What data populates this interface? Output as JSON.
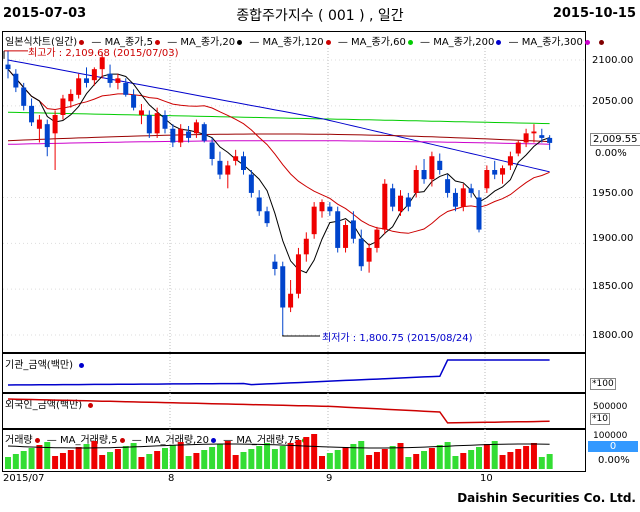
{
  "header": {
    "start_date": "2015-07-03",
    "title": "종합주가지수 ( 001 ) , 일간",
    "end_date": "2015-10-15"
  },
  "price_panel": {
    "legend": [
      {
        "label": "일본식차트(일간)",
        "color": "#c00000"
      },
      {
        "label": "MA_종가,5",
        "color": "#cc0000"
      },
      {
        "label": "MA_종가,20",
        "color": "#000000"
      },
      {
        "label": "MA_종가,120",
        "color": "#cc0000"
      },
      {
        "label": "MA_종가,60",
        "color": "#00cc00"
      },
      {
        "label": "MA_종가,200",
        "color": "#0000cc"
      },
      {
        "label": "MA_종가,300",
        "color": "#cc00cc"
      }
    ],
    "legend_end_marker": "#800000",
    "high_annotation": "최고가 : 2,109.68 (2015/07/03)",
    "low_annotation": "최저가 : 1,800.75 (2015/08/24)",
    "yticks": [
      "2100.00",
      "2050.00",
      "2009.55",
      "1950.00",
      "1900.00",
      "1850.00",
      "1800.00"
    ],
    "current_value": "2,009.55",
    "change_pct": "0.00%"
  },
  "institution_panel": {
    "title": "기관_금액(백만)",
    "color": "#0000cc",
    "scale": "*100"
  },
  "foreign_panel": {
    "title": "외국인_금액(백만)",
    "color": "#cc0000",
    "tick": "500000",
    "scale": "*10"
  },
  "volume_panel": {
    "legend": [
      {
        "label": "거래량",
        "color": "#cc0000"
      },
      {
        "label": "MA_거래량,5",
        "color": "#cc0000"
      },
      {
        "label": "MA_거래량,20",
        "color": "#0000cc"
      },
      {
        "label": "MA_거래량,75",
        "color": "#00cc00"
      }
    ],
    "tick": "100000",
    "current_value": "0",
    "change_pct": "0.00%"
  },
  "x_axis": {
    "labels": [
      "2015/07",
      "8",
      "9",
      "10"
    ]
  },
  "footer": {
    "brand": "Daishin Securities Co. Ltd."
  },
  "chart_data": {
    "type": "candlestick",
    "y_range": [
      1780,
      2120
    ],
    "candles": [
      {
        "o": 2095,
        "h": 2110,
        "l": 2080,
        "c": 2090
      },
      {
        "o": 2085,
        "h": 2090,
        "l": 2065,
        "c": 2070
      },
      {
        "o": 2070,
        "h": 2075,
        "l": 2045,
        "c": 2050
      },
      {
        "o": 2050,
        "h": 2058,
        "l": 2028,
        "c": 2032
      },
      {
        "o": 2025,
        "h": 2040,
        "l": 2010,
        "c": 2035
      },
      {
        "o": 2030,
        "h": 2035,
        "l": 1995,
        "c": 2005
      },
      {
        "o": 2020,
        "h": 2045,
        "l": 1980,
        "c": 2040
      },
      {
        "o": 2040,
        "h": 2062,
        "l": 2035,
        "c": 2058
      },
      {
        "o": 2055,
        "h": 2068,
        "l": 2048,
        "c": 2063
      },
      {
        "o": 2062,
        "h": 2085,
        "l": 2058,
        "c": 2080
      },
      {
        "o": 2080,
        "h": 2092,
        "l": 2070,
        "c": 2075
      },
      {
        "o": 2078,
        "h": 2092,
        "l": 2072,
        "c": 2090
      },
      {
        "o": 2090,
        "h": 2108,
        "l": 2080,
        "c": 2103
      },
      {
        "o": 2085,
        "h": 2095,
        "l": 2070,
        "c": 2075
      },
      {
        "o": 2075,
        "h": 2085,
        "l": 2068,
        "c": 2080
      },
      {
        "o": 2075,
        "h": 2080,
        "l": 2060,
        "c": 2062
      },
      {
        "o": 2062,
        "h": 2068,
        "l": 2045,
        "c": 2048
      },
      {
        "o": 2040,
        "h": 2052,
        "l": 2030,
        "c": 2045
      },
      {
        "o": 2040,
        "h": 2045,
        "l": 2015,
        "c": 2020
      },
      {
        "o": 2020,
        "h": 2048,
        "l": 2015,
        "c": 2042
      },
      {
        "o": 2040,
        "h": 2045,
        "l": 2020,
        "c": 2025
      },
      {
        "o": 2025,
        "h": 2030,
        "l": 2005,
        "c": 2010
      },
      {
        "o": 2010,
        "h": 2030,
        "l": 2005,
        "c": 2025
      },
      {
        "o": 2022,
        "h": 2028,
        "l": 2010,
        "c": 2015
      },
      {
        "o": 2020,
        "h": 2035,
        "l": 2015,
        "c": 2032
      },
      {
        "o": 2030,
        "h": 2032,
        "l": 2010,
        "c": 2012
      },
      {
        "o": 2010,
        "h": 2015,
        "l": 1985,
        "c": 1992
      },
      {
        "o": 1990,
        "h": 2000,
        "l": 1970,
        "c": 1975
      },
      {
        "o": 1975,
        "h": 1990,
        "l": 1960,
        "c": 1985
      },
      {
        "o": 1990,
        "h": 2002,
        "l": 1985,
        "c": 1995
      },
      {
        "o": 1995,
        "h": 2000,
        "l": 1975,
        "c": 1980
      },
      {
        "o": 1975,
        "h": 1980,
        "l": 1950,
        "c": 1955
      },
      {
        "o": 1950,
        "h": 1958,
        "l": 1930,
        "c": 1935
      },
      {
        "o": 1935,
        "h": 1940,
        "l": 1918,
        "c": 1922
      },
      {
        "o": 1880,
        "h": 1888,
        "l": 1865,
        "c": 1872
      },
      {
        "o": 1875,
        "h": 1880,
        "l": 1800,
        "c": 1830
      },
      {
        "o": 1830,
        "h": 1860,
        "l": 1825,
        "c": 1845
      },
      {
        "o": 1845,
        "h": 1895,
        "l": 1840,
        "c": 1888
      },
      {
        "o": 1888,
        "h": 1912,
        "l": 1880,
        "c": 1905
      },
      {
        "o": 1910,
        "h": 1945,
        "l": 1905,
        "c": 1940
      },
      {
        "o": 1935,
        "h": 1948,
        "l": 1928,
        "c": 1945
      },
      {
        "o": 1940,
        "h": 1945,
        "l": 1930,
        "c": 1935
      },
      {
        "o": 1935,
        "h": 1940,
        "l": 1890,
        "c": 1895
      },
      {
        "o": 1895,
        "h": 1925,
        "l": 1890,
        "c": 1920
      },
      {
        "o": 1925,
        "h": 1935,
        "l": 1900,
        "c": 1905
      },
      {
        "o": 1905,
        "h": 1915,
        "l": 1870,
        "c": 1875
      },
      {
        "o": 1880,
        "h": 1900,
        "l": 1868,
        "c": 1895
      },
      {
        "o": 1895,
        "h": 1918,
        "l": 1890,
        "c": 1915
      },
      {
        "o": 1915,
        "h": 1970,
        "l": 1910,
        "c": 1965
      },
      {
        "o": 1960,
        "h": 1965,
        "l": 1935,
        "c": 1940
      },
      {
        "o": 1935,
        "h": 1958,
        "l": 1930,
        "c": 1952
      },
      {
        "o": 1950,
        "h": 1955,
        "l": 1935,
        "c": 1940
      },
      {
        "o": 1955,
        "h": 1985,
        "l": 1950,
        "c": 1980
      },
      {
        "o": 1980,
        "h": 1992,
        "l": 1965,
        "c": 1970
      },
      {
        "o": 1970,
        "h": 2000,
        "l": 1962,
        "c": 1995
      },
      {
        "o": 1990,
        "h": 1998,
        "l": 1975,
        "c": 1980
      },
      {
        "o": 1970,
        "h": 1975,
        "l": 1950,
        "c": 1955
      },
      {
        "o": 1955,
        "h": 1960,
        "l": 1935,
        "c": 1940
      },
      {
        "o": 1940,
        "h": 1965,
        "l": 1935,
        "c": 1960
      },
      {
        "o": 1960,
        "h": 1965,
        "l": 1950,
        "c": 1955
      },
      {
        "o": 1950,
        "h": 1958,
        "l": 1912,
        "c": 1915
      },
      {
        "o": 1960,
        "h": 1985,
        "l": 1955,
        "c": 1980
      },
      {
        "o": 1980,
        "h": 1990,
        "l": 1970,
        "c": 1975
      },
      {
        "o": 1975,
        "h": 1985,
        "l": 1965,
        "c": 1982
      },
      {
        "o": 1985,
        "h": 2000,
        "l": 1980,
        "c": 1995
      },
      {
        "o": 1998,
        "h": 2012,
        "l": 1995,
        "c": 2010
      },
      {
        "o": 2010,
        "h": 2025,
        "l": 2005,
        "c": 2020
      },
      {
        "o": 2020,
        "h": 2030,
        "l": 2010,
        "c": 2022
      },
      {
        "o": 2018,
        "h": 2025,
        "l": 2010,
        "c": 2015
      },
      {
        "o": 2015,
        "h": 2018,
        "l": 2002,
        "c": 2009.55
      }
    ]
  }
}
